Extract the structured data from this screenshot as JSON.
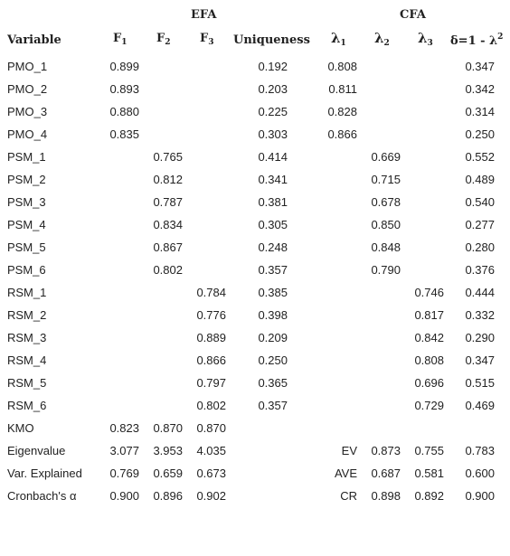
{
  "headers": {
    "efa": "EFA",
    "cfa": "CFA",
    "variable": "Variable",
    "f": "F",
    "f1_sub": "1",
    "f2_sub": "2",
    "f3_sub": "3",
    "uniqueness": "Uniqueness",
    "lambda": "λ",
    "l1_sub": "1",
    "l2_sub": "2",
    "l3_sub": "3",
    "delta_prefix": "δ=1 - λ",
    "delta_sup": "2"
  },
  "rows": [
    {
      "label": "PMO_1",
      "f1": "0.899",
      "f2": "",
      "f3": "",
      "u": "0.192",
      "l1": "0.808",
      "l2": "",
      "l3": "",
      "d": "0.347"
    },
    {
      "label": "PMO_2",
      "f1": "0.893",
      "f2": "",
      "f3": "",
      "u": "0.203",
      "l1": "0.811",
      "l2": "",
      "l3": "",
      "d": "0.342"
    },
    {
      "label": "PMO_3",
      "f1": "0.880",
      "f2": "",
      "f3": "",
      "u": "0.225",
      "l1": "0.828",
      "l2": "",
      "l3": "",
      "d": "0.314"
    },
    {
      "label": "PMO_4",
      "f1": "0.835",
      "f2": "",
      "f3": "",
      "u": "0.303",
      "l1": "0.866",
      "l2": "",
      "l3": "",
      "d": "0.250"
    },
    {
      "label": "PSM_1",
      "f1": "",
      "f2": "0.765",
      "f3": "",
      "u": "0.414",
      "l1": "",
      "l2": "0.669",
      "l3": "",
      "d": "0.552"
    },
    {
      "label": "PSM_2",
      "f1": "",
      "f2": "0.812",
      "f3": "",
      "u": "0.341",
      "l1": "",
      "l2": "0.715",
      "l3": "",
      "d": "0.489"
    },
    {
      "label": "PSM_3",
      "f1": "",
      "f2": "0.787",
      "f3": "",
      "u": "0.381",
      "l1": "",
      "l2": "0.678",
      "l3": "",
      "d": "0.540"
    },
    {
      "label": "PSM_4",
      "f1": "",
      "f2": "0.834",
      "f3": "",
      "u": "0.305",
      "l1": "",
      "l2": "0.850",
      "l3": "",
      "d": "0.277"
    },
    {
      "label": "PSM_5",
      "f1": "",
      "f2": "0.867",
      "f3": "",
      "u": "0.248",
      "l1": "",
      "l2": "0.848",
      "l3": "",
      "d": "0.280"
    },
    {
      "label": "PSM_6",
      "f1": "",
      "f2": "0.802",
      "f3": "",
      "u": "0.357",
      "l1": "",
      "l2": "0.790",
      "l3": "",
      "d": "0.376"
    },
    {
      "label": "RSM_1",
      "f1": "",
      "f2": "",
      "f3": "0.784",
      "u": "0.385",
      "l1": "",
      "l2": "",
      "l3": "0.746",
      "d": "0.444"
    },
    {
      "label": "RSM_2",
      "f1": "",
      "f2": "",
      "f3": "0.776",
      "u": "0.398",
      "l1": "",
      "l2": "",
      "l3": "0.817",
      "d": "0.332"
    },
    {
      "label": "RSM_3",
      "f1": "",
      "f2": "",
      "f3": "0.889",
      "u": "0.209",
      "l1": "",
      "l2": "",
      "l3": "0.842",
      "d": "0.290"
    },
    {
      "label": "RSM_4",
      "f1": "",
      "f2": "",
      "f3": "0.866",
      "u": "0.250",
      "l1": "",
      "l2": "",
      "l3": "0.808",
      "d": "0.347"
    },
    {
      "label": "RSM_5",
      "f1": "",
      "f2": "",
      "f3": "0.797",
      "u": "0.365",
      "l1": "",
      "l2": "",
      "l3": "0.696",
      "d": "0.515"
    },
    {
      "label": "RSM_6",
      "f1": "",
      "f2": "",
      "f3": "0.802",
      "u": "0.357",
      "l1": "",
      "l2": "",
      "l3": "0.729",
      "d": "0.469"
    },
    {
      "label": "KMO",
      "f1": "0.823",
      "f2": "0.870",
      "f3": "0.870",
      "u": "",
      "l1": "",
      "l2": "",
      "l3": "",
      "d": ""
    },
    {
      "label": "Eigenvalue",
      "f1": "3.077",
      "f2": "3.953",
      "f3": "4.035",
      "u": "",
      "l1": "EV",
      "l2": "0.873",
      "l3": "0.755",
      "d": "0.783"
    },
    {
      "label": "Var. Explained",
      "f1": "0.769",
      "f2": "0.659",
      "f3": "0.673",
      "u": "",
      "l1": "AVE",
      "l2": "0.687",
      "l3": "0.581",
      "d": "0.600"
    },
    {
      "label": "Cronbach's α",
      "f1": "0.900",
      "f2": "0.896",
      "f3": "0.902",
      "u": "",
      "l1": "CR",
      "l2": "0.898",
      "l3": "0.892",
      "d": "0.900"
    }
  ]
}
